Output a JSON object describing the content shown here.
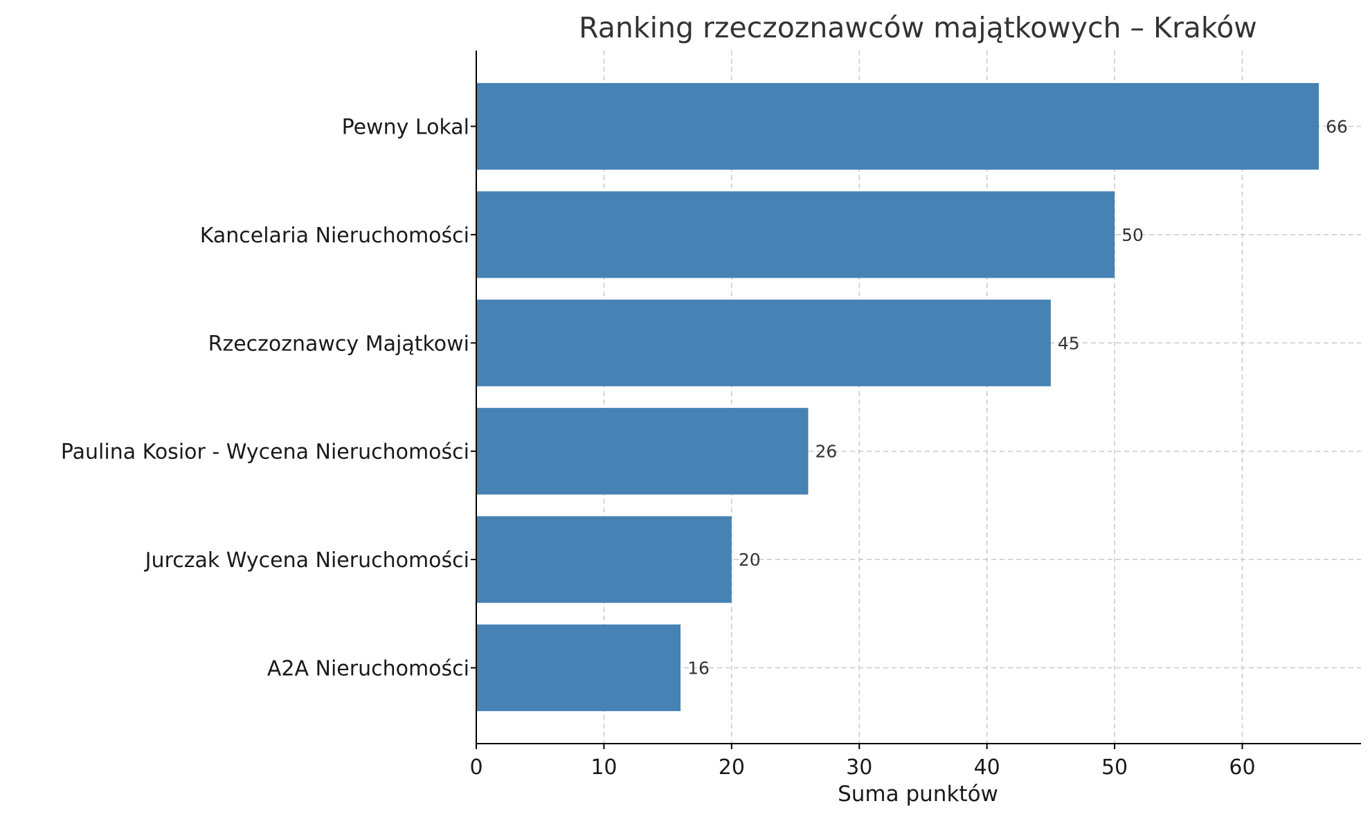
{
  "chart_data": {
    "type": "bar",
    "orientation": "horizontal",
    "title": "Ranking rzeczoznawców majątkowych – Kraków",
    "xlabel": "Suma punktów",
    "ylabel": "",
    "categories": [
      "Pewny Lokal",
      "Kancelaria Nieruchomości",
      "Rzeczoznawcy Majątkowi",
      "Paulina Kosior - Wycena Nieruchomości",
      "Jurczak Wycena Nieruchomości",
      "A2A Nieruchomości"
    ],
    "values": [
      66,
      50,
      45,
      26,
      20,
      16
    ],
    "xlim": [
      0,
      69.3
    ],
    "xticks": [
      0,
      10,
      20,
      30,
      40,
      50,
      60
    ],
    "grid": true,
    "bar_color": "#4682b4"
  }
}
